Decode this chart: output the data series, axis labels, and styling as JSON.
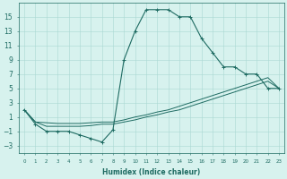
{
  "xlabel": "Humidex (Indice chaleur)",
  "background_color": "#d7f2ee",
  "grid_color": "#aad8d2",
  "line_color": "#1e6b62",
  "x_all": [
    0,
    1,
    2,
    3,
    4,
    5,
    6,
    7,
    8,
    9,
    10,
    11,
    12,
    13,
    14,
    15,
    16,
    17,
    18,
    19,
    20,
    21,
    22,
    23
  ],
  "y_main": [
    2,
    0,
    -1,
    -1,
    -1,
    -1.5,
    -2,
    -2.5,
    -0.8,
    9,
    13,
    16,
    16,
    16,
    15,
    15,
    12,
    10,
    8,
    8,
    7,
    7,
    5,
    5
  ],
  "y_upper": [
    2,
    0.3,
    0.2,
    0.1,
    0.1,
    0.1,
    0.2,
    0.3,
    0.3,
    0.6,
    1.0,
    1.3,
    1.7,
    2.0,
    2.5,
    3.0,
    3.5,
    4.0,
    4.5,
    5.0,
    5.5,
    6.0,
    6.5,
    5.0
  ],
  "y_lower": [
    2,
    0.3,
    -0.3,
    -0.3,
    -0.3,
    -0.3,
    -0.2,
    0.0,
    0.0,
    0.3,
    0.6,
    1.0,
    1.3,
    1.7,
    2.0,
    2.5,
    3.0,
    3.5,
    4.0,
    4.5,
    5.0,
    5.5,
    6.0,
    5.0
  ],
  "yticks": [
    -3,
    -1,
    1,
    3,
    5,
    7,
    9,
    11,
    13,
    15
  ],
  "xticks": [
    0,
    1,
    2,
    3,
    4,
    5,
    6,
    7,
    8,
    9,
    10,
    11,
    12,
    13,
    14,
    15,
    16,
    17,
    18,
    19,
    20,
    21,
    22,
    23
  ],
  "xlim": [
    -0.5,
    23.5
  ],
  "ylim": [
    -4,
    17
  ]
}
